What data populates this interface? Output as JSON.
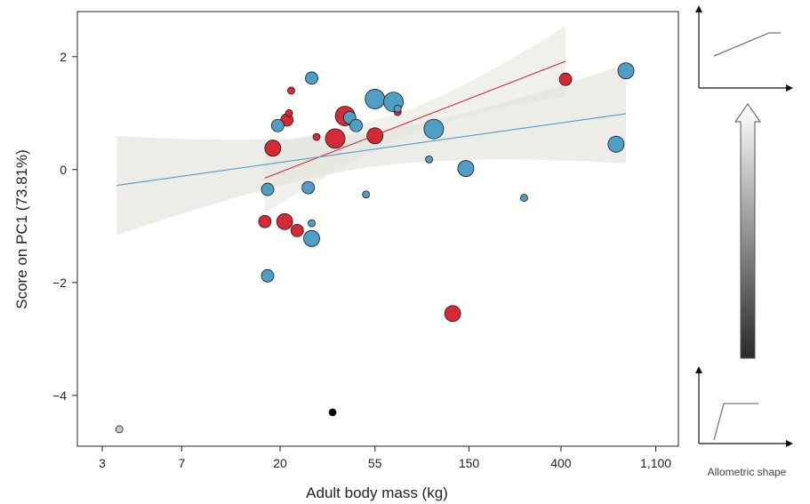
{
  "chart_data": {
    "type": "scatter",
    "xlabel": "Adult body mass (kg)",
    "ylabel": "Score on PC1 (73.81%)",
    "x_scale": "log",
    "x_ticks": [
      3,
      7,
      20,
      55,
      150,
      400,
      1100
    ],
    "x_tick_labels": [
      "3",
      "7",
      "20",
      "55",
      "150",
      "400",
      "1,100"
    ],
    "y_ticks": [
      2,
      0,
      -2,
      -4
    ],
    "y_tick_labels": [
      "2",
      "0",
      "−2",
      "−4"
    ],
    "xlim": [
      2.3,
      1400
    ],
    "ylim": [
      -4.9,
      2.8
    ],
    "grid": false,
    "colors": {
      "red_group": "#d42a36",
      "blue_group": "#4f9ec4",
      "gray": "#c9c9c0",
      "black": "#000000",
      "band": "#e6e6e0"
    },
    "series": [
      {
        "color": "#d42a36",
        "points": [
          {
            "x": 17,
            "y": -0.92,
            "size": 1
          },
          {
            "x": 18.5,
            "y": 0.38,
            "size": 2
          },
          {
            "x": 21,
            "y": -0.92,
            "size": 2
          },
          {
            "x": 21.5,
            "y": 0.88,
            "size": 1
          },
          {
            "x": 22,
            "y": 1.0,
            "size": 0
          },
          {
            "x": 22.5,
            "y": 1.4,
            "size": 0
          },
          {
            "x": 24,
            "y": -1.08,
            "size": 1
          },
          {
            "x": 29.5,
            "y": 0.58,
            "size": 0
          },
          {
            "x": 36,
            "y": 0.55,
            "size": 3
          },
          {
            "x": 40,
            "y": 0.95,
            "size": 3
          },
          {
            "x": 55,
            "y": 0.6,
            "size": 2
          },
          {
            "x": 70,
            "y": 1.02,
            "size": 0
          },
          {
            "x": 126,
            "y": -2.55,
            "size": 2
          },
          {
            "x": 420,
            "y": 1.6,
            "size": 1
          }
        ],
        "trend": {
          "x": [
            17,
            420
          ],
          "y": [
            -0.15,
            1.92
          ]
        }
      },
      {
        "color": "#4f9ec4",
        "points": [
          {
            "x": 17.5,
            "y": -0.35,
            "size": 1
          },
          {
            "x": 17.5,
            "y": -1.88,
            "size": 1
          },
          {
            "x": 19.5,
            "y": 0.78,
            "size": 1
          },
          {
            "x": 27,
            "y": -0.32,
            "size": 1
          },
          {
            "x": 28,
            "y": -0.95,
            "size": 0
          },
          {
            "x": 28,
            "y": -1.22,
            "size": 2
          },
          {
            "x": 28,
            "y": 1.62,
            "size": 1
          },
          {
            "x": 42,
            "y": 0.92,
            "size": 1
          },
          {
            "x": 45,
            "y": 0.78,
            "size": 1
          },
          {
            "x": 50,
            "y": -0.44,
            "size": 0
          },
          {
            "x": 55,
            "y": 1.25,
            "size": 3
          },
          {
            "x": 67,
            "y": 1.2,
            "size": 3
          },
          {
            "x": 70,
            "y": 1.08,
            "size": 0
          },
          {
            "x": 98,
            "y": 0.18,
            "size": 0
          },
          {
            "x": 103,
            "y": 0.72,
            "size": 3
          },
          {
            "x": 145,
            "y": 0.02,
            "size": 2
          },
          {
            "x": 270,
            "y": -0.5,
            "size": 0
          },
          {
            "x": 720,
            "y": 0.45,
            "size": 2
          },
          {
            "x": 800,
            "y": 1.75,
            "size": 2
          }
        ],
        "trend": {
          "x": [
            3.5,
            800
          ],
          "y": [
            -0.28,
            0.99
          ]
        }
      },
      {
        "color": "#c9c9c0",
        "points": [
          {
            "x": 3.6,
            "y": -4.6,
            "size": 0
          }
        ]
      },
      {
        "color": "#000000",
        "points": [
          {
            "x": 35,
            "y": -4.3,
            "size": 0
          }
        ]
      }
    ]
  },
  "side_panel": {
    "label": "Allometric shape"
  }
}
